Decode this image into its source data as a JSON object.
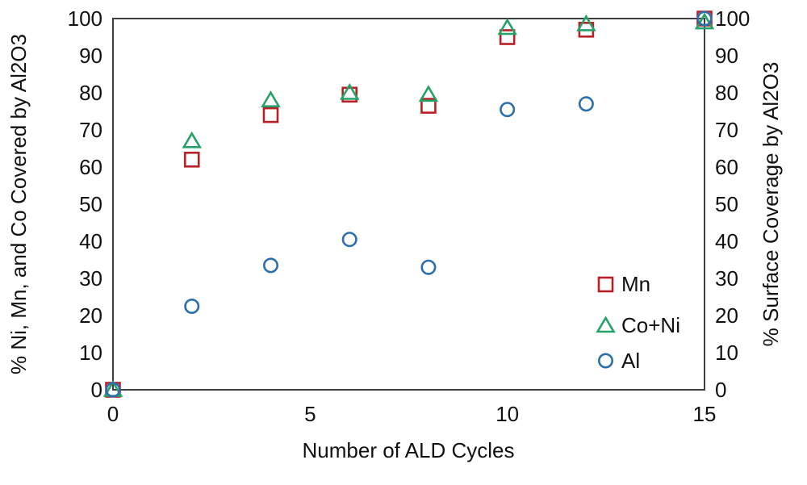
{
  "chart_data": {
    "type": "scatter",
    "title": "",
    "xlabel": "Number of ALD Cycles",
    "ylabel_left": "% Ni, Mn, and Co Covered by Al2O3",
    "ylabel_right": "% Surface Coverage by Al2O3",
    "xlim": [
      0,
      15
    ],
    "ylim": [
      0,
      100
    ],
    "x_ticks": [
      0,
      5,
      10,
      15
    ],
    "y_ticks": [
      0,
      10,
      20,
      30,
      40,
      50,
      60,
      70,
      80,
      90,
      100
    ],
    "grid": false,
    "legend_position": "inside-right",
    "x": [
      0,
      2,
      4,
      6,
      8,
      10,
      12,
      15
    ],
    "series": [
      {
        "name": "Mn",
        "marker": "square",
        "color": "#b92025",
        "values": [
          0,
          62,
          74,
          79.5,
          76.5,
          95,
          97,
          100
        ]
      },
      {
        "name": "Co+Ni",
        "marker": "triangle",
        "color": "#26a269",
        "values": [
          0,
          67,
          78,
          80,
          79.5,
          97.5,
          98.5,
          99
        ]
      },
      {
        "name": "Al",
        "marker": "circle",
        "color": "#2c6fad",
        "values": [
          0,
          22.5,
          33.5,
          40.5,
          33,
          75.5,
          77,
          100
        ]
      }
    ]
  },
  "style": {
    "axis_color": "#3f3f3f",
    "text_color": "#111111"
  }
}
